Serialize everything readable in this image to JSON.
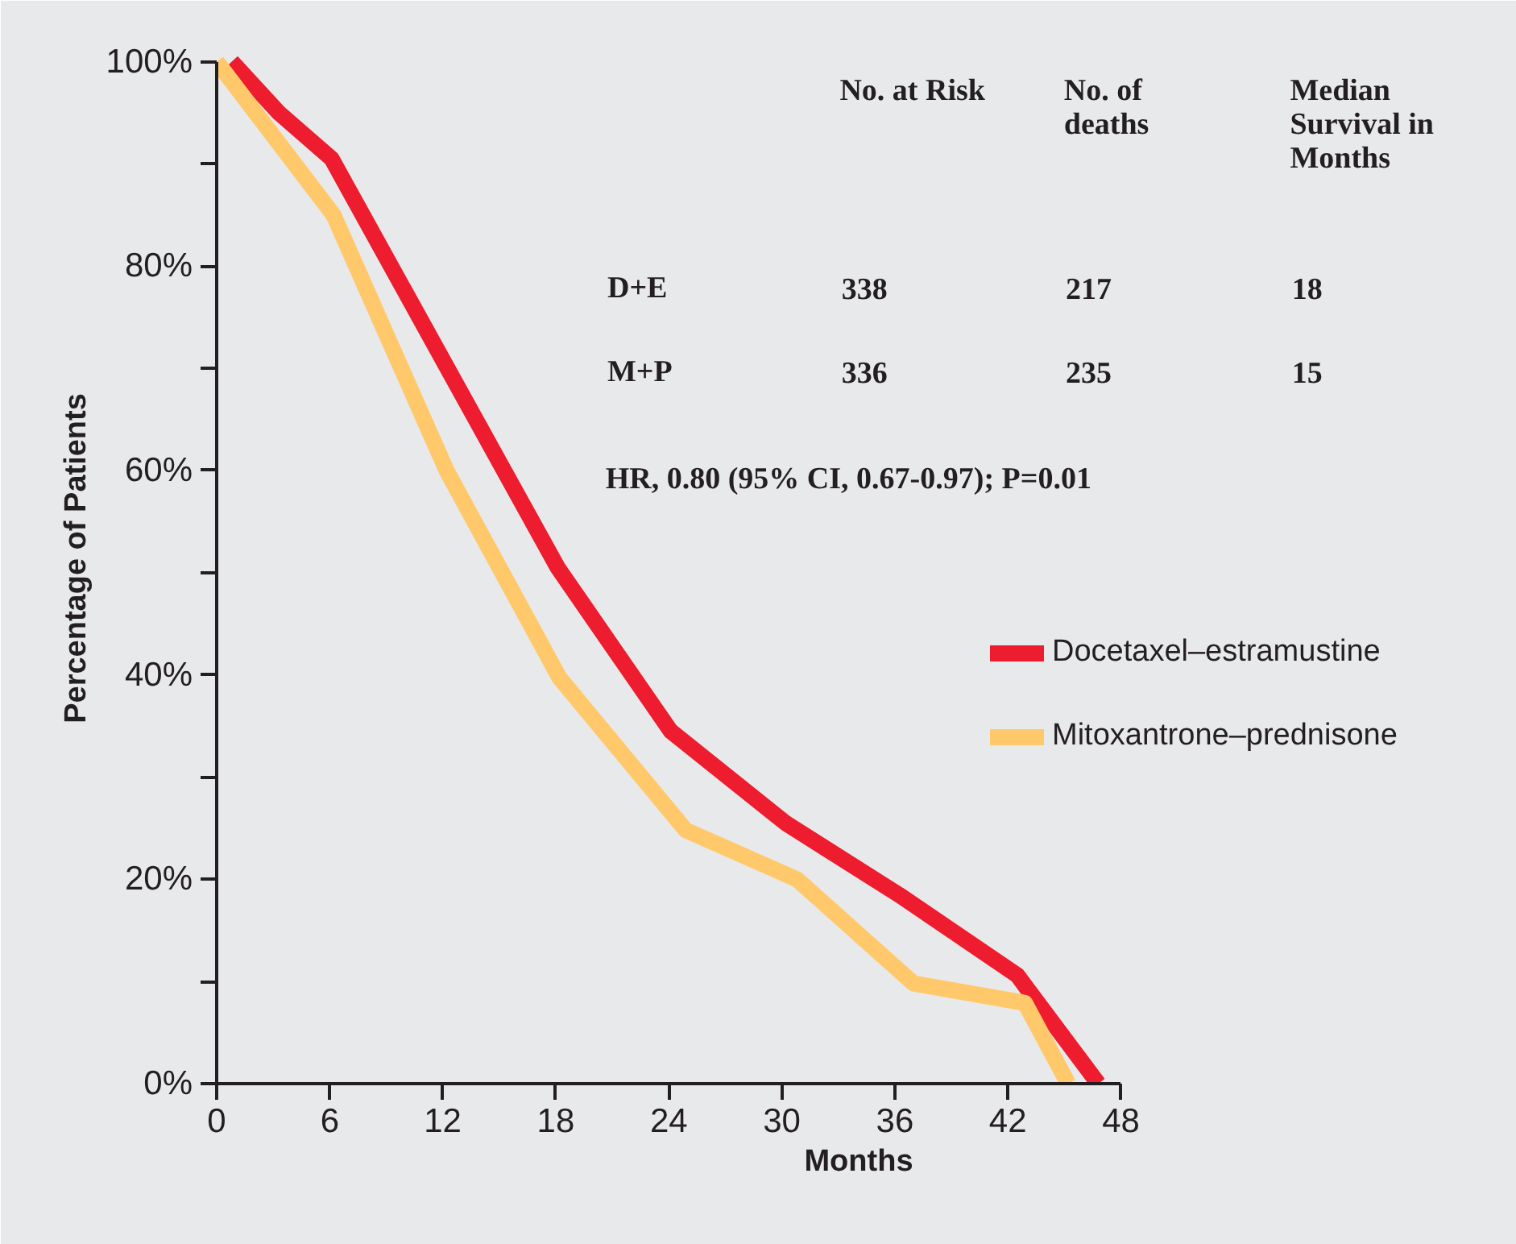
{
  "chart_data": {
    "type": "line",
    "xlabel": "Months",
    "ylabel": "Percentage of Patients",
    "series": [
      {
        "name": "Docetaxel–estramustine",
        "color": "#ed1c2e",
        "x": [
          0.8,
          3.3,
          6.1,
          18.1,
          24.1,
          30.2,
          36.2,
          42.5,
          46.8
        ],
        "values": [
          100,
          95,
          90.5,
          50.5,
          34.5,
          25.5,
          18.5,
          10.6,
          0
        ]
      },
      {
        "name": "Mitoxantrone–prednisone",
        "color": "#ffc96b",
        "x": [
          0,
          6.2,
          12.2,
          18.2,
          24.9,
          30.8,
          37,
          42.9,
          45.2
        ],
        "values": [
          100,
          85,
          60,
          39.7,
          24.8,
          20,
          9.8,
          7.9,
          0
        ]
      }
    ],
    "xlim": [
      0,
      48
    ],
    "xticks": [
      0,
      6,
      12,
      18,
      24,
      30,
      36,
      42,
      48
    ],
    "ylim": [
      0,
      100
    ],
    "yticks": [
      {
        "value": 0,
        "label": "0%"
      },
      {
        "value": 10,
        "label": null
      },
      {
        "value": 20,
        "label": "20%"
      },
      {
        "value": 30,
        "label": null
      },
      {
        "value": 40,
        "label": "40%"
      },
      {
        "value": 50,
        "label": null
      },
      {
        "value": 60,
        "label": "60%"
      },
      {
        "value": 70,
        "label": null
      },
      {
        "value": 80,
        "label": "80%"
      },
      {
        "value": 90,
        "label": null
      },
      {
        "value": 100,
        "label": "100%"
      }
    ],
    "annotations": [
      "No. at Risk",
      "No. of deaths",
      "Median Survival in Months",
      "D+E",
      "338",
      "217",
      "18",
      "M+P",
      "336",
      "235",
      "15",
      "HR, 0.80 (95% CI, 0.67-0.97); P=0.01"
    ],
    "legend": "right",
    "line_style": "solid",
    "grid": false
  }
}
